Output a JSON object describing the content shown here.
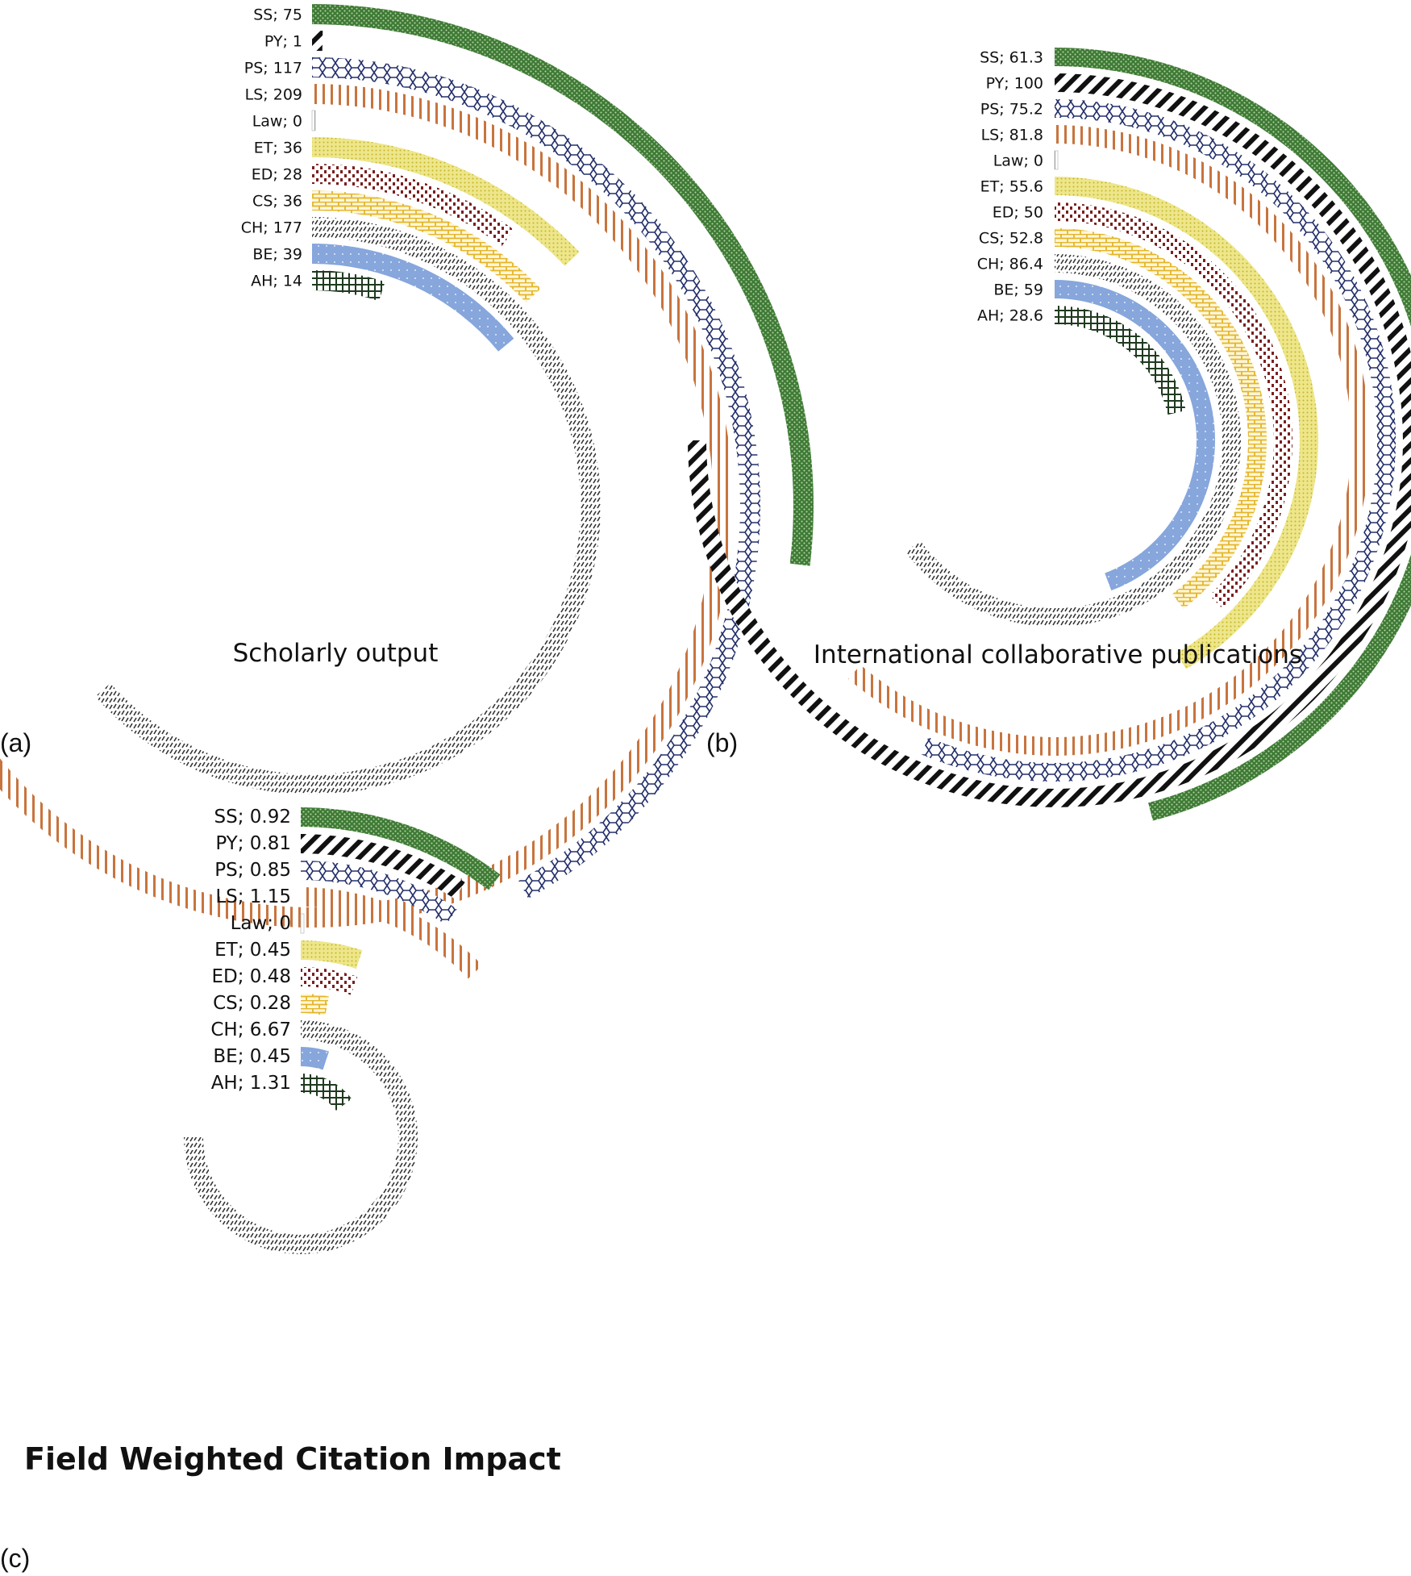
{
  "chart_data": [
    {
      "type": "radial-bar",
      "panel_label": "(a)",
      "title": "Scholarly output",
      "max": 209,
      "categories": [
        "SS",
        "PY",
        "PS",
        "LS",
        "Law",
        "ET",
        "ED",
        "CS",
        "CH",
        "BE",
        "AH"
      ],
      "values": [
        75,
        1,
        117,
        209,
        0,
        36,
        28,
        36,
        177,
        39,
        14
      ],
      "labels": [
        "SS; 75",
        "PY; 1",
        "PS; 117",
        "LS; 209",
        "Law; 0",
        "ET; 36",
        "ED; 28",
        "CS; 36",
        "CH; 177",
        "BE; 39",
        "AH; 14"
      ]
    },
    {
      "type": "radial-bar",
      "panel_label": "(b)",
      "title": "International collaborative publications",
      "max": 100,
      "categories": [
        "SS",
        "PY",
        "PS",
        "LS",
        "Law",
        "ET",
        "ED",
        "CS",
        "CH",
        "BE",
        "AH"
      ],
      "values": [
        61.3,
        100,
        75.2,
        81.8,
        0,
        55.6,
        50,
        52.8,
        86.4,
        59,
        28.6
      ],
      "labels": [
        "SS; 61.3",
        "PY; 100",
        "PS; 75.2",
        "LS; 81.8",
        "Law; 0",
        "ET; 55.6",
        "ED; 50",
        "CS; 52.8",
        "CH; 86.4",
        "BE; 59",
        "AH; 28.6"
      ]
    },
    {
      "type": "radial-bar",
      "panel_label": "(c)",
      "title": "Field Weighted Citation Impact",
      "max": 6.67,
      "categories": [
        "SS",
        "PY",
        "PS",
        "LS",
        "Law",
        "ET",
        "ED",
        "CS",
        "CH",
        "BE",
        "AH"
      ],
      "values": [
        0.92,
        0.81,
        0.85,
        1.15,
        0,
        0.45,
        0.48,
        0.28,
        6.67,
        0.45,
        1.31
      ],
      "labels": [
        "SS; 0.92",
        "PY; 0.81",
        "PS; 0.85",
        "LS; 1.15",
        "Law; 0",
        "ET; 0.45",
        "ED; 0.48",
        "CS; 0.28",
        "CH; 6.67",
        "BE; 0.45",
        "AH; 1.31"
      ]
    }
  ],
  "colors": {
    "SS": "#3f7a36",
    "PY": "#111111",
    "PS": "#24306b",
    "LS": "#c8743e",
    "Law": "#999999",
    "ET": "#d4c93a",
    "ED": "#7a1f1f",
    "CS": "#e3b52a",
    "CH": "#333333",
    "BE": "#86a6dc",
    "AH": "#1f3a1f"
  }
}
